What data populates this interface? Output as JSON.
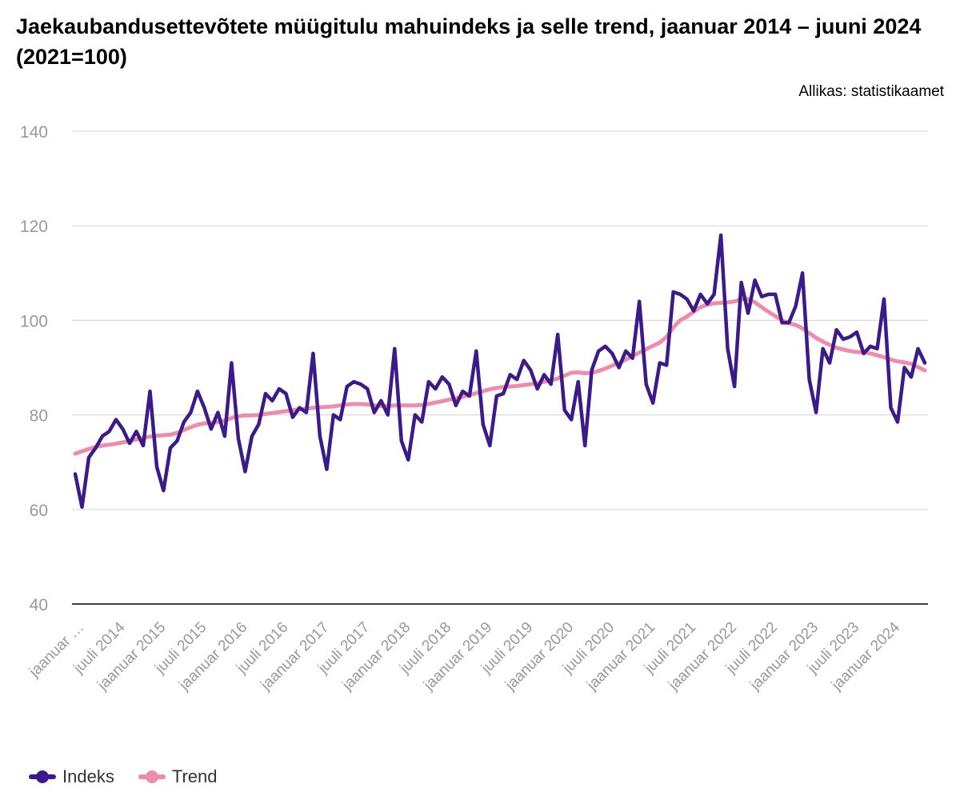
{
  "chart_data": {
    "type": "line",
    "title": "Jaekaubandusettevõtete müügitulu mahuindeks ja selle trend, jaanuar 2014 – juuni 2024 (2021=100)",
    "source": "Allikas: statistikaamet",
    "ylim": [
      40,
      140
    ],
    "yticks": [
      40,
      60,
      80,
      100,
      120,
      140
    ],
    "grid": true,
    "legend_position": "bottom-left",
    "x_tick_labels": [
      "jaanuar …",
      "juuli 2014",
      "jaanuar 2015",
      "juuli 2015",
      "jaanuar 2016",
      "juuli 2016",
      "jaanuar 2017",
      "juuli 2017",
      "jaanuar 2018",
      "juuli 2018",
      "jaanuar 2019",
      "juuli 2019",
      "jaanuar 2020",
      "juuli 2020",
      "jaanuar 2021",
      "juuli 2021",
      "jaanuar 2022",
      "juuli 2022",
      "jaanuar 2023",
      "juuli 2023",
      "jaanuar 2024"
    ],
    "x_start": "jaanuar 2014",
    "x_end": "juuni 2024",
    "series": [
      {
        "name": "Indeks",
        "color": "#3b1a8a",
        "values": [
          67.5,
          60.5,
          71,
          73,
          75.5,
          76.5,
          79,
          77,
          74,
          76.5,
          73.5,
          85,
          69,
          64,
          73,
          74.5,
          78.5,
          80.5,
          85,
          81.5,
          77,
          80.5,
          75.5,
          91,
          75,
          68,
          75.5,
          78,
          84.5,
          83,
          85.5,
          84.5,
          79.5,
          81.5,
          80.5,
          93,
          75.5,
          68.5,
          80,
          79,
          86,
          87,
          86.5,
          85.5,
          80.5,
          83,
          80,
          94,
          74.5,
          70.5,
          80,
          78.5,
          87,
          85.5,
          88,
          86.5,
          82,
          85,
          84,
          93.5,
          78,
          73.5,
          84,
          84.5,
          88.5,
          87.5,
          91.5,
          89.5,
          85.5,
          88.5,
          86.5,
          97,
          81,
          79,
          87,
          73.5,
          89.5,
          93.5,
          94.5,
          93,
          90,
          93.5,
          92,
          104,
          86.5,
          82.5,
          91,
          90.5,
          106,
          105.5,
          104.5,
          102,
          105.5,
          103.5,
          105.5,
          118,
          94,
          86,
          108,
          101.5,
          108.5,
          105,
          105.5,
          105.5,
          99.5,
          99.5,
          103,
          110,
          87.5,
          80.5,
          94,
          91,
          98,
          96,
          96.5,
          97.5,
          93,
          94.5,
          94,
          104.5,
          81.5,
          78.5,
          90,
          88,
          94,
          91
        ]
      },
      {
        "name": "Trend",
        "color": "#f08cab",
        "values": [
          71.8,
          72.3,
          72.8,
          73.2,
          73.5,
          73.7,
          73.9,
          74.2,
          74.5,
          74.8,
          75.1,
          75.4,
          75.6,
          75.7,
          75.8,
          76.2,
          76.8,
          77.4,
          77.9,
          78.2,
          78.3,
          78.5,
          78.8,
          79.3,
          79.7,
          79.9,
          79.9,
          80.0,
          80.2,
          80.4,
          80.6,
          80.8,
          81.0,
          81.2,
          81.3,
          81.5,
          81.6,
          81.7,
          81.8,
          82.0,
          82.2,
          82.3,
          82.3,
          82.2,
          82.0,
          81.9,
          81.9,
          82.0,
          82.0,
          82.0,
          82.0,
          82.1,
          82.3,
          82.6,
          82.9,
          83.2,
          83.5,
          83.8,
          84.2,
          84.6,
          85.0,
          85.4,
          85.7,
          85.9,
          86.0,
          86.1,
          86.3,
          86.5,
          86.7,
          87.0,
          87.3,
          87.7,
          88.3,
          88.9,
          89.0,
          88.8,
          88.9,
          89.3,
          89.8,
          90.4,
          91.0,
          91.7,
          92.4,
          93.2,
          93.9,
          94.6,
          95.3,
          96.5,
          98.5,
          100.0,
          100.8,
          101.8,
          102.8,
          103.3,
          103.6,
          103.7,
          103.8,
          104.0,
          104.5,
          104.5,
          103.8,
          102.8,
          101.8,
          100.9,
          100.0,
          99.4,
          99.0,
          98.3,
          97.3,
          96.3,
          95.5,
          94.8,
          94.2,
          93.8,
          93.5,
          93.3,
          93.2,
          93.0,
          92.6,
          92.2,
          91.7,
          91.3,
          91.1,
          90.8,
          90.1,
          89.4
        ]
      }
    ]
  }
}
